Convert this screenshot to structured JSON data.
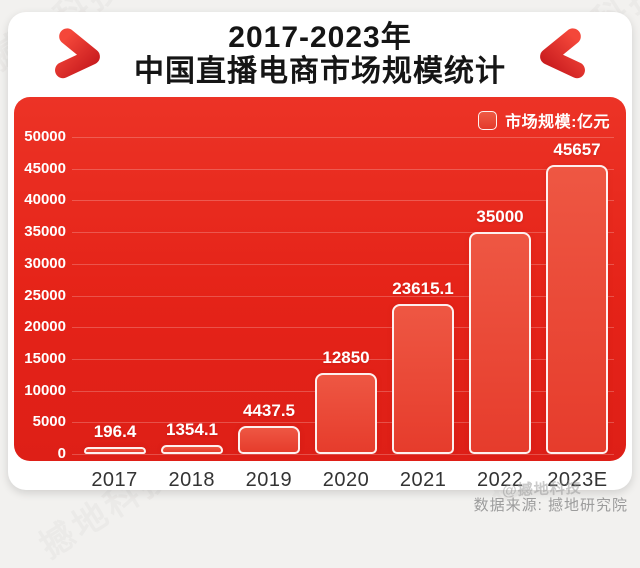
{
  "page": {
    "watermark": "撼地科技"
  },
  "header": {
    "title_line1": "2017-2023年",
    "title_line2": "中国直播电商市场规模统计"
  },
  "legend": {
    "label": "市场规模:亿元"
  },
  "footer": {
    "source": "数据来源: 撼地研究院",
    "watermark": "@撼地科技"
  },
  "colors": {
    "panel_red_top": "#ec3326",
    "panel_red_bottom": "#de1f17",
    "bar_fill_top": "#ee5743",
    "bar_fill_bottom": "#e63c2c",
    "bar_border": "#ffffff",
    "title_text": "#151515",
    "axis_text": "#333333",
    "value_text": "#ffffff",
    "source_text": "#9c9c9c",
    "card_bg": "#ffffff",
    "outer_bg": "#f2f1ef"
  },
  "chart_data": {
    "type": "bar",
    "title": "2017-2023年中国直播电商市场规模统计",
    "series_name": "市场规模:亿元",
    "unit": "亿元",
    "categories": [
      "2017",
      "2018",
      "2019",
      "2020",
      "2021",
      "2022",
      "2023E"
    ],
    "values": [
      196.4,
      1354.1,
      4437.5,
      12850,
      23615.1,
      35000,
      45657
    ],
    "value_labels": [
      "196.4",
      "1354.1",
      "4437.5",
      "12850",
      "23615.1",
      "35000",
      "45657"
    ],
    "xlabel": "",
    "ylabel": "",
    "ylim": [
      0,
      50000
    ],
    "ytick_step": 5000,
    "yticks": [
      "0",
      "5000",
      "10000",
      "15000",
      "20000",
      "25000",
      "30000",
      "35000",
      "40000",
      "45000",
      "50000"
    ],
    "grid": true,
    "legend_position": "top-right",
    "source": "数据来源: 撼地研究院"
  }
}
